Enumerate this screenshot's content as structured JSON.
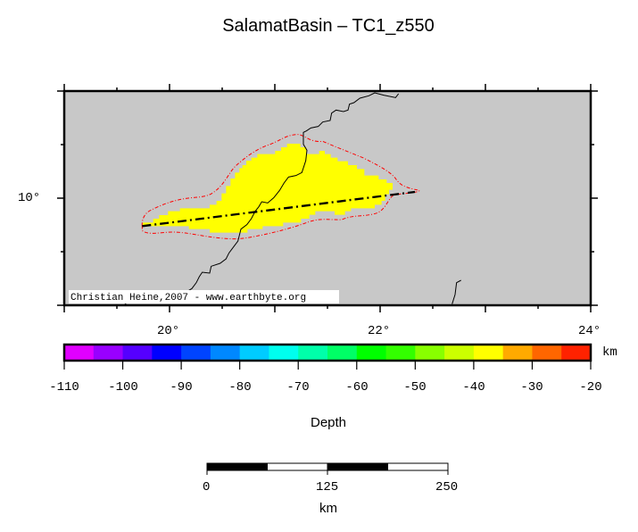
{
  "title": "SalamatBasin – TC1_z550",
  "map": {
    "background_color": "#c8c8c8",
    "basin_fill_color": "#ffff00",
    "contour_color": "#ff0000",
    "lon_labels": [
      "20°",
      "22°",
      "24°"
    ],
    "lat_labels": [
      "10°"
    ],
    "credit": "Christian Heine,2007 - www.earthbyte.org"
  },
  "colorbar": {
    "unit": "km",
    "label": "Depth",
    "min": -110,
    "max": -20,
    "step": 5,
    "tick_labels": [
      "-110",
      "-100",
      "-90",
      "-80",
      "-70",
      "-60",
      "-50",
      "-40",
      "-30",
      "-20"
    ],
    "colors": [
      "#e000ff",
      "#9900ff",
      "#5500ff",
      "#0000ff",
      "#0044ff",
      "#0088ff",
      "#00ccff",
      "#00ffee",
      "#00ffaa",
      "#00ff66",
      "#00ff00",
      "#33ff00",
      "#88ff00",
      "#ccff00",
      "#ffff00",
      "#ffaa00",
      "#ff6600",
      "#ff2200"
    ]
  },
  "scalebar": {
    "labels": [
      "0",
      "125",
      "250"
    ],
    "unit": "km"
  }
}
